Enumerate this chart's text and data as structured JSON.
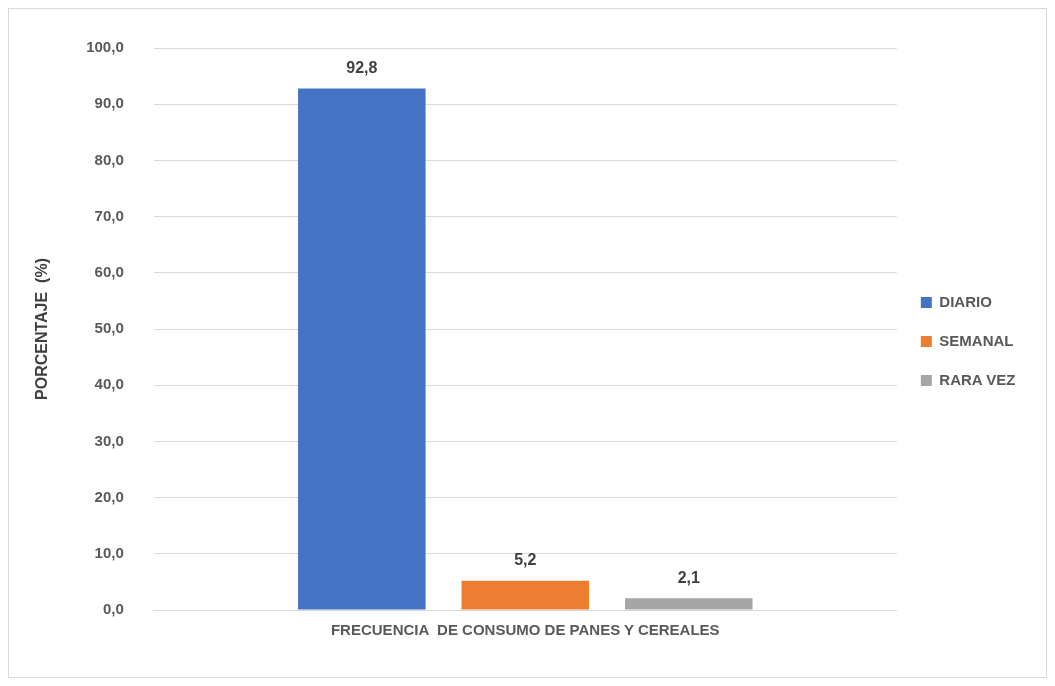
{
  "chart_data": {
    "type": "bar",
    "ylabel": "PORCENTAJE  (%)",
    "categories": [
      "FRECUENCIA  DE CONSUMO DE PANES Y CEREALES"
    ],
    "series": [
      {
        "name": "DIARIO",
        "color": "#4472c4",
        "values": [
          92.8
        ],
        "value_labels": [
          "92,8"
        ]
      },
      {
        "name": "SEMANAL",
        "color": "#ed7d31",
        "values": [
          5.2
        ],
        "value_labels": [
          "5,2"
        ]
      },
      {
        "name": "RARA VEZ",
        "color": "#a5a5a5",
        "values": [
          2.1
        ],
        "value_labels": [
          "2,1"
        ]
      }
    ],
    "ylim": [
      0,
      100
    ],
    "yticks": [
      {
        "value": 0,
        "label": "0,0"
      },
      {
        "value": 10,
        "label": "10,0"
      },
      {
        "value": 20,
        "label": "20,0"
      },
      {
        "value": 30,
        "label": "30,0"
      },
      {
        "value": 40,
        "label": "40,0"
      },
      {
        "value": 50,
        "label": "50,0"
      },
      {
        "value": 60,
        "label": "60,0"
      },
      {
        "value": 70,
        "label": "70,0"
      },
      {
        "value": 80,
        "label": "80,0"
      },
      {
        "value": 90,
        "label": "90,0"
      },
      {
        "value": 100,
        "label": "100,0"
      }
    ],
    "grid": "y",
    "legend": "right"
  }
}
